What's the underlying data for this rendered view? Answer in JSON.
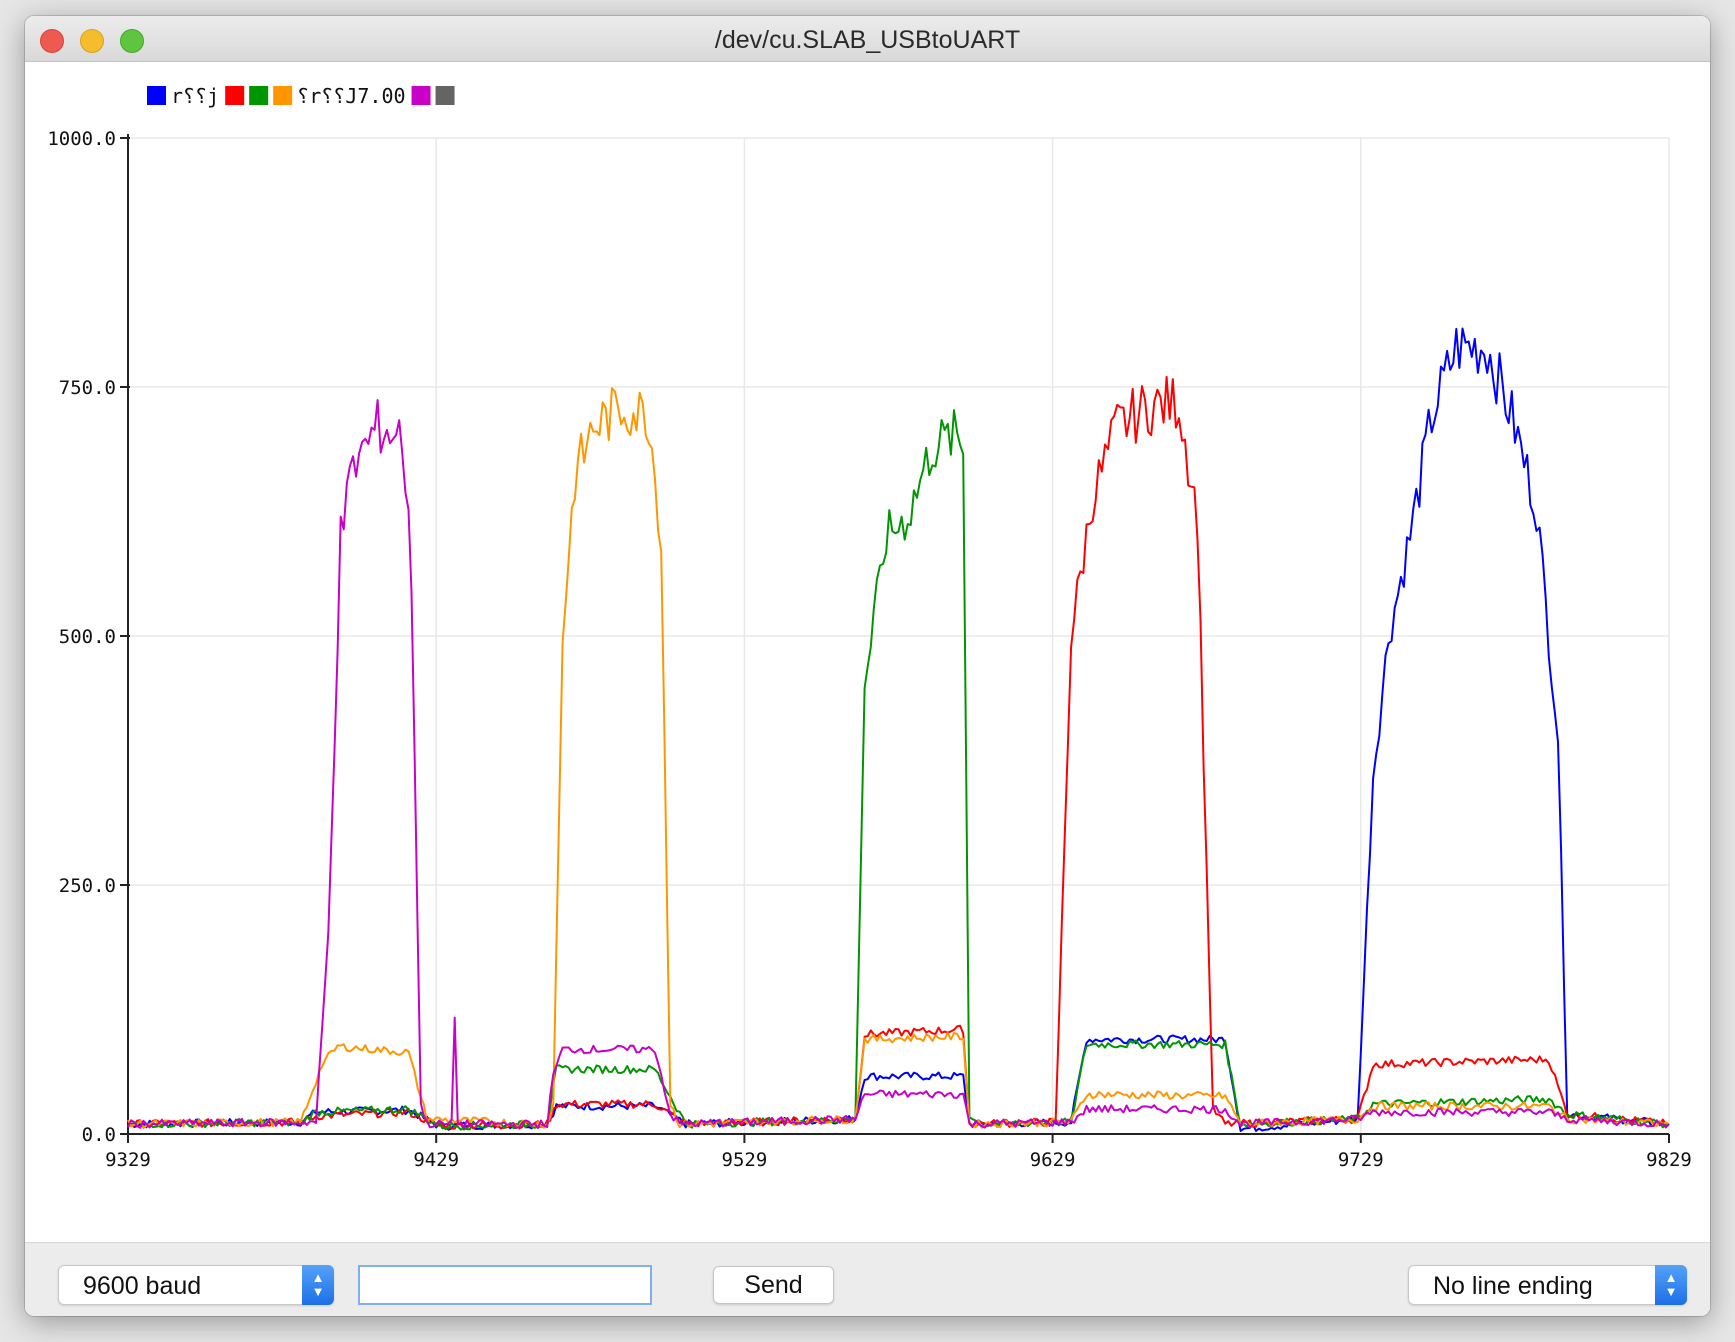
{
  "window": {
    "title": "/dev/cu.SLAB_USBtoUART"
  },
  "legend": [
    {
      "color": "#0000ff",
      "label": "r⸮⸮j"
    },
    {
      "color": "#ff0000",
      "label": ""
    },
    {
      "color": "#009600",
      "label": ""
    },
    {
      "color": "#ff9600",
      "label": "⸮r⸮⸮J7.00"
    },
    {
      "color": "#c800c8",
      "label": ""
    },
    {
      "color": "#646464",
      "label": ""
    }
  ],
  "chart_data": {
    "type": "line",
    "ylim": [
      0,
      1000
    ],
    "xlim": [
      9329,
      9829
    ],
    "y_ticks": [
      "0.0",
      "250.0",
      "500.0",
      "750.0",
      "1000.0"
    ],
    "x_ticks": [
      "9329",
      "9429",
      "9529",
      "9629",
      "9729",
      "9829"
    ],
    "grid": true,
    "legend_position": "top-left",
    "series": [
      {
        "color": "#0000ff",
        "points": [
          [
            9329,
            10
          ],
          [
            9385,
            12
          ],
          [
            9390,
            22
          ],
          [
            9420,
            24
          ],
          [
            9430,
            8
          ],
          [
            9465,
            10
          ],
          [
            9468,
            28
          ],
          [
            9500,
            28
          ],
          [
            9510,
            10
          ],
          [
            9565,
            15
          ],
          [
            9568,
            58
          ],
          [
            9600,
            58
          ],
          [
            9602,
            10
          ],
          [
            9635,
            12
          ],
          [
            9640,
            95
          ],
          [
            9685,
            95
          ],
          [
            9690,
            5
          ],
          [
            9728,
            15
          ],
          [
            9733,
            360
          ],
          [
            9738,
            500
          ],
          [
            9745,
            600
          ],
          [
            9752,
            720
          ],
          [
            9760,
            790
          ],
          [
            9770,
            790
          ],
          [
            9778,
            720
          ],
          [
            9786,
            630
          ],
          [
            9793,
            400
          ],
          [
            9796,
            20
          ],
          [
            9829,
            10
          ]
        ]
      },
      {
        "color": "#ff0000",
        "points": [
          [
            9329,
            10
          ],
          [
            9385,
            12
          ],
          [
            9390,
            18
          ],
          [
            9420,
            22
          ],
          [
            9430,
            8
          ],
          [
            9465,
            10
          ],
          [
            9468,
            30
          ],
          [
            9500,
            30
          ],
          [
            9510,
            10
          ],
          [
            9565,
            15
          ],
          [
            9568,
            100
          ],
          [
            9600,
            105
          ],
          [
            9602,
            10
          ],
          [
            9630,
            12
          ],
          [
            9635,
            500
          ],
          [
            9642,
            640
          ],
          [
            9650,
            710
          ],
          [
            9660,
            730
          ],
          [
            9670,
            735
          ],
          [
            9676,
            620
          ],
          [
            9681,
            25
          ],
          [
            9685,
            10
          ],
          [
            9728,
            15
          ],
          [
            9733,
            70
          ],
          [
            9790,
            75
          ],
          [
            9796,
            20
          ],
          [
            9829,
            10
          ]
        ]
      },
      {
        "color": "#009600",
        "points": [
          [
            9329,
            10
          ],
          [
            9385,
            12
          ],
          [
            9390,
            22
          ],
          [
            9420,
            25
          ],
          [
            9430,
            8
          ],
          [
            9465,
            10
          ],
          [
            9468,
            65
          ],
          [
            9500,
            65
          ],
          [
            9510,
            10
          ],
          [
            9565,
            15
          ],
          [
            9568,
            450
          ],
          [
            9575,
            600
          ],
          [
            9582,
            620
          ],
          [
            9590,
            690
          ],
          [
            9597,
            700
          ],
          [
            9600,
            690
          ],
          [
            9602,
            20
          ],
          [
            9605,
            10
          ],
          [
            9635,
            12
          ],
          [
            9640,
            90
          ],
          [
            9685,
            90
          ],
          [
            9690,
            10
          ],
          [
            9728,
            15
          ],
          [
            9733,
            30
          ],
          [
            9790,
            35
          ],
          [
            9796,
            20
          ],
          [
            9829,
            10
          ]
        ]
      },
      {
        "color": "#ff9600",
        "points": [
          [
            9329,
            10
          ],
          [
            9385,
            12
          ],
          [
            9392,
            70
          ],
          [
            9397,
            88
          ],
          [
            9420,
            82
          ],
          [
            9426,
            15
          ],
          [
            9465,
            10
          ],
          [
            9467,
            30
          ],
          [
            9470,
            500
          ],
          [
            9474,
            660
          ],
          [
            9480,
            710
          ],
          [
            9490,
            730
          ],
          [
            9498,
            720
          ],
          [
            9502,
            600
          ],
          [
            9505,
            30
          ],
          [
            9508,
            10
          ],
          [
            9565,
            15
          ],
          [
            9568,
            95
          ],
          [
            9600,
            98
          ],
          [
            9602,
            10
          ],
          [
            9635,
            12
          ],
          [
            9640,
            40
          ],
          [
            9685,
            38
          ],
          [
            9690,
            10
          ],
          [
            9728,
            15
          ],
          [
            9733,
            28
          ],
          [
            9790,
            28
          ],
          [
            9796,
            15
          ],
          [
            9829,
            10
          ]
        ]
      },
      {
        "color": "#c800c8",
        "points": [
          [
            9329,
            10
          ],
          [
            9390,
            12
          ],
          [
            9394,
            200
          ],
          [
            9398,
            600
          ],
          [
            9402,
            670
          ],
          [
            9410,
            710
          ],
          [
            9418,
            700
          ],
          [
            9421,
            560
          ],
          [
            9424,
            30
          ],
          [
            9426,
            10
          ],
          [
            9434,
            10
          ],
          [
            9435,
            120
          ],
          [
            9436,
            10
          ],
          [
            9465,
            10
          ],
          [
            9467,
            60
          ],
          [
            9470,
            85
          ],
          [
            9500,
            85
          ],
          [
            9505,
            20
          ],
          [
            9508,
            10
          ],
          [
            9565,
            15
          ],
          [
            9568,
            40
          ],
          [
            9600,
            40
          ],
          [
            9602,
            10
          ],
          [
            9635,
            12
          ],
          [
            9640,
            25
          ],
          [
            9685,
            25
          ],
          [
            9690,
            10
          ],
          [
            9728,
            15
          ],
          [
            9733,
            22
          ],
          [
            9790,
            22
          ],
          [
            9796,
            15
          ],
          [
            9829,
            10
          ]
        ]
      }
    ]
  },
  "bottom": {
    "baud_label": "9600 baud",
    "input_value": "",
    "send_label": "Send",
    "line_ending_label": "No line ending"
  }
}
